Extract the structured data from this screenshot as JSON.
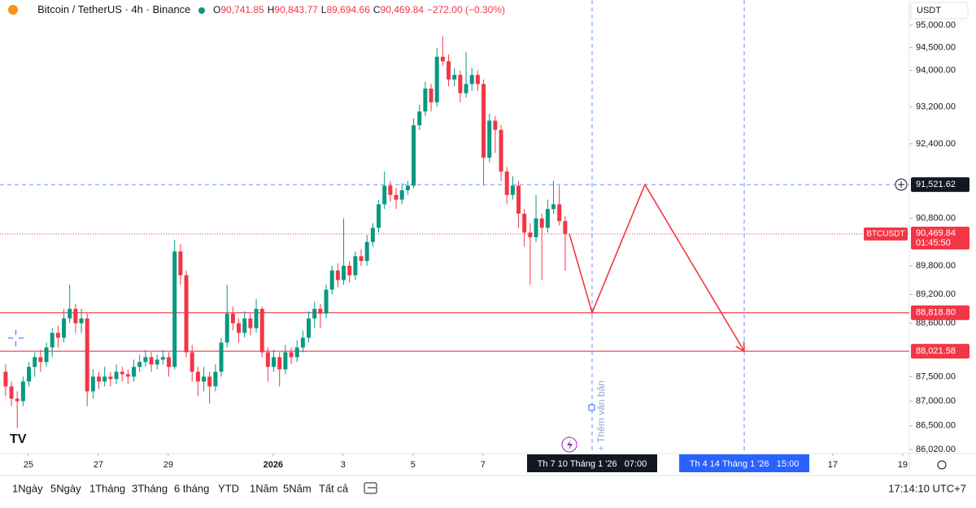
{
  "header": {
    "title": "Bitcoin / TetherUS · 4h · Binance",
    "o_label": "O",
    "o": "90,741.85",
    "h_label": "H",
    "h": "90,843.77",
    "l_label": "L",
    "l": "89,694.66",
    "c_label": "C",
    "c": "90,469.84",
    "change": "−272.00 (−0.30%)"
  },
  "currency": "USDT",
  "chart_data": {
    "type": "candlestick",
    "log_scale": true,
    "grid": false,
    "up_color": "#089981",
    "down_color": "#f23645",
    "ylim": [
      85940,
      95560
    ],
    "yticks": [
      {
        "value": 95000,
        "label": "95,000.00"
      },
      {
        "value": 94500,
        "label": "94,500.00"
      },
      {
        "value": 94000,
        "label": "94,000.00"
      },
      {
        "value": 93200,
        "label": "93,200.00"
      },
      {
        "value": 92400,
        "label": "92,400.00"
      },
      {
        "value": 90800,
        "label": "90,800.00"
      },
      {
        "value": 89800,
        "label": "89,800.00"
      },
      {
        "value": 89200,
        "label": "89,200.00"
      },
      {
        "value": 88600,
        "label": "88,600.00"
      },
      {
        "value": 87500,
        "label": "87,500.00"
      },
      {
        "value": 87000,
        "label": "87,000.00"
      },
      {
        "value": 86500,
        "label": "86,500.00"
      },
      {
        "value": 86020,
        "label": "86,020.00"
      }
    ],
    "xlim": [
      -0.81,
      25.19
    ],
    "xticks": [
      {
        "value": 0,
        "label": "25"
      },
      {
        "value": 2,
        "label": "27"
      },
      {
        "value": 4,
        "label": "29"
      },
      {
        "value": 7,
        "label": "2026"
      },
      {
        "value": 9,
        "label": "3"
      },
      {
        "value": 11,
        "label": "5"
      },
      {
        "value": 13,
        "label": "7"
      },
      {
        "value": 23,
        "label": "17"
      },
      {
        "value": 25,
        "label": "19"
      }
    ],
    "candles": [
      [
        87600,
        87750,
        87100,
        87300
      ],
      [
        87300,
        87400,
        86900,
        87050
      ],
      [
        87050,
        87200,
        86450,
        87000
      ],
      [
        87000,
        87500,
        86900,
        87400
      ],
      [
        87400,
        87800,
        87300,
        87700
      ],
      [
        87700,
        88000,
        87500,
        87900
      ],
      [
        87900,
        88050,
        87600,
        87800
      ],
      [
        87800,
        88200,
        87700,
        88100
      ],
      [
        88100,
        88500,
        87900,
        88400
      ],
      [
        88400,
        88550,
        88100,
        88300
      ],
      [
        88300,
        88900,
        88200,
        88700
      ],
      [
        88700,
        89400,
        88600,
        88900
      ],
      [
        88900,
        89000,
        88400,
        88600
      ],
      [
        88600,
        88900,
        88400,
        88700
      ],
      [
        88700,
        88800,
        86900,
        87200
      ],
      [
        87200,
        87650,
        87050,
        87500
      ],
      [
        87500,
        87600,
        87250,
        87400
      ],
      [
        87400,
        87700,
        87300,
        87500
      ],
      [
        87500,
        87600,
        87300,
        87450
      ],
      [
        87450,
        87750,
        87350,
        87600
      ],
      [
        87600,
        87700,
        87400,
        87550
      ],
      [
        87550,
        87650,
        87350,
        87500
      ],
      [
        87500,
        87850,
        87400,
        87700
      ],
      [
        87700,
        87950,
        87600,
        87800
      ],
      [
        87800,
        88050,
        87700,
        87900
      ],
      [
        87900,
        88000,
        87600,
        87750
      ],
      [
        87750,
        87950,
        87650,
        87850
      ],
      [
        87850,
        88050,
        87750,
        87900
      ],
      [
        87900,
        88000,
        87500,
        87700
      ],
      [
        87700,
        90350,
        87650,
        90100
      ],
      [
        90100,
        90250,
        89400,
        89600
      ],
      [
        89600,
        89700,
        87900,
        88000
      ],
      [
        88000,
        88150,
        87400,
        87600
      ],
      [
        87600,
        87700,
        87100,
        87400
      ],
      [
        87400,
        87700,
        87200,
        87500
      ],
      [
        87500,
        87600,
        86950,
        87300
      ],
      [
        87300,
        87750,
        87200,
        87600
      ],
      [
        87600,
        88300,
        87500,
        88200
      ],
      [
        88200,
        89400,
        88100,
        88800
      ],
      [
        88800,
        88950,
        88450,
        88600
      ],
      [
        88600,
        88700,
        88200,
        88400
      ],
      [
        88400,
        88850,
        88300,
        88700
      ],
      [
        88700,
        88800,
        88350,
        88500
      ],
      [
        88500,
        89100,
        88400,
        88900
      ],
      [
        88900,
        88950,
        87900,
        88000
      ],
      [
        88000,
        88100,
        87400,
        87700
      ],
      [
        87700,
        88050,
        87600,
        87900
      ],
      [
        87900,
        88000,
        87300,
        87650
      ],
      [
        87650,
        88150,
        87550,
        88000
      ],
      [
        88000,
        88100,
        87750,
        87900
      ],
      [
        87900,
        88250,
        87800,
        88100
      ],
      [
        88100,
        88450,
        88000,
        88300
      ],
      [
        88300,
        88850,
        88200,
        88700
      ],
      [
        88700,
        89050,
        88500,
        88900
      ],
      [
        88900,
        89000,
        88500,
        88800
      ],
      [
        88800,
        89400,
        88700,
        89300
      ],
      [
        89300,
        89800,
        89200,
        89700
      ],
      [
        89700,
        89850,
        89350,
        89500
      ],
      [
        89500,
        90800,
        89400,
        89800
      ],
      [
        89800,
        89900,
        89450,
        89600
      ],
      [
        89600,
        90100,
        89500,
        90000
      ],
      [
        90000,
        90150,
        89800,
        89900
      ],
      [
        89900,
        90450,
        89800,
        90300
      ],
      [
        90300,
        90700,
        90200,
        90600
      ],
      [
        90600,
        91200,
        90500,
        91100
      ],
      [
        91100,
        91800,
        91000,
        91500
      ],
      [
        91500,
        91600,
        91150,
        91300
      ],
      [
        91300,
        91450,
        91000,
        91200
      ],
      [
        91200,
        91550,
        91100,
        91400
      ],
      [
        91400,
        91600,
        91300,
        91500
      ],
      [
        91500,
        92950,
        91450,
        92800
      ],
      [
        92800,
        93250,
        92700,
        93100
      ],
      [
        93100,
        93750,
        93000,
        93600
      ],
      [
        93600,
        93700,
        93100,
        93300
      ],
      [
        93300,
        94500,
        93200,
        94300
      ],
      [
        94300,
        94750,
        94100,
        94200
      ],
      [
        94200,
        94350,
        93650,
        93800
      ],
      [
        93800,
        94050,
        93650,
        93900
      ],
      [
        93900,
        94000,
        93300,
        93500
      ],
      [
        93500,
        94400,
        93400,
        93700
      ],
      [
        93700,
        94050,
        93550,
        93900
      ],
      [
        93900,
        94000,
        93550,
        93700
      ],
      [
        93700,
        93800,
        91500,
        92100
      ],
      [
        92100,
        93050,
        92000,
        92900
      ],
      [
        92900,
        93000,
        92200,
        92700
      ],
      [
        92700,
        92800,
        91600,
        91800
      ],
      [
        91800,
        91900,
        91100,
        91300
      ],
      [
        91300,
        91700,
        91200,
        91500
      ],
      [
        91500,
        91600,
        90600,
        90900
      ],
      [
        90900,
        91000,
        90200,
        90500
      ],
      [
        90500,
        90700,
        89400,
        90400
      ],
      [
        90400,
        91300,
        90300,
        90800
      ],
      [
        90800,
        90900,
        89500,
        90600
      ],
      [
        90600,
        91200,
        90500,
        91000
      ],
      [
        91000,
        91600,
        90900,
        91100
      ],
      [
        91100,
        91500,
        90650,
        90741.85
      ],
      [
        90741.85,
        90843.77,
        89694.66,
        90469.84
      ]
    ],
    "levels": [
      {
        "value": 91521.62,
        "label": "91,521.62",
        "color": "#2962ff",
        "style": "dashed"
      },
      {
        "value": 88818.8,
        "label": "88,818.80",
        "color": "#f23645",
        "style": "solid"
      },
      {
        "value": 88021.58,
        "label": "88,021.58",
        "color": "#f23645",
        "style": "solid"
      }
    ],
    "last_price": {
      "value": 90469.84,
      "label": "90,469.84",
      "symbol": "BTCUSDT",
      "countdown": "01:45:50",
      "color": "#f23645"
    },
    "drawing": {
      "color": "#f23645",
      "x": [
        15.47,
        16.12,
        17.63,
        20.47
      ],
      "y": [
        90469.84,
        88818.8,
        91521.62,
        88021.58
      ]
    },
    "crosshairs": [
      {
        "x": 16.12,
        "label": "Th 7 10 Tháng 1 '26   07:00",
        "color": "#131722"
      },
      {
        "x": 20.47,
        "label": "Th 4 14 Tháng 1 '26   15:00",
        "color": "#2962ff"
      }
    ]
  },
  "annotation": "+ Thêm văn bản",
  "toolbar": {
    "ranges": [
      "1Ngày",
      "5Ngày",
      "1Tháng",
      "3Tháng",
      "6 tháng",
      "YTD",
      "1Năm",
      "5Năm",
      "Tất cả"
    ],
    "clock": "17:14:10 UTC+7"
  }
}
